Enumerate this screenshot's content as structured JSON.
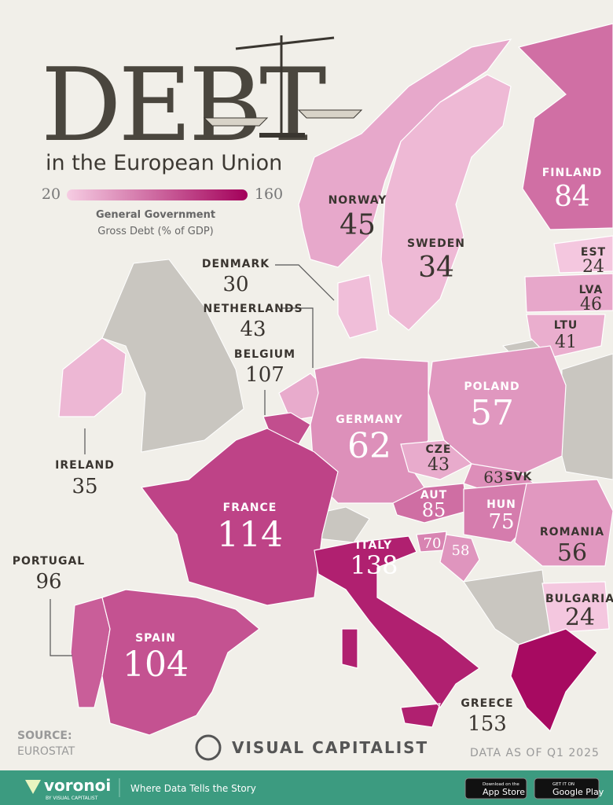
{
  "header": {
    "title": "DEBT",
    "subtitle": "in the European Union"
  },
  "legend": {
    "min": 20,
    "max": 160,
    "label_line1": "General Government",
    "label_line2": "Gross Debt (% of GDP)",
    "colors": [
      "#f6cde3",
      "#a3005a"
    ]
  },
  "countries": [
    {
      "name": "FINLAND",
      "value": 84
    },
    {
      "name": "NORWAY",
      "value": 45
    },
    {
      "name": "SWEDEN",
      "value": 34
    },
    {
      "name": "EST",
      "value": 24
    },
    {
      "name": "LVA",
      "value": 46
    },
    {
      "name": "LTU",
      "value": 41
    },
    {
      "name": "DENMARK",
      "value": 30
    },
    {
      "name": "NETHERLANDS",
      "value": 43
    },
    {
      "name": "BELGIUM",
      "value": 107
    },
    {
      "name": "IRELAND",
      "value": 35
    },
    {
      "name": "POLAND",
      "value": 57
    },
    {
      "name": "GERMANY",
      "value": 62
    },
    {
      "name": "CZE",
      "value": 43
    },
    {
      "name": "SVK",
      "value": 63
    },
    {
      "name": "AUT",
      "value": 85
    },
    {
      "name": "HUN",
      "value": 75
    },
    {
      "name": "FRANCE",
      "value": 114
    },
    {
      "name": "ROMANIA",
      "value": 56
    },
    {
      "name": "ITALY",
      "value": 138
    },
    {
      "name": null,
      "value": 70
    },
    {
      "name": null,
      "value": 58
    },
    {
      "name": "PORTUGAL",
      "value": 96
    },
    {
      "name": "SPAIN",
      "value": 104
    },
    {
      "name": "BULGARIA",
      "value": 24
    },
    {
      "name": "GREECE",
      "value": 153
    }
  ],
  "footer": {
    "source_label": "SOURCE:",
    "source": "EUROSTAT",
    "brand": "VISUAL CAPITALIST",
    "data_as_of": "DATA AS OF Q1 2025",
    "logo": "voronoi",
    "logo_sub": "BY VISUAL CAPITALIST",
    "tagline": "Where Data Tells the Story",
    "app_store_small": "Download on the",
    "app_store": "App Store",
    "google_small": "GET IT ON",
    "google": "Google Play"
  }
}
